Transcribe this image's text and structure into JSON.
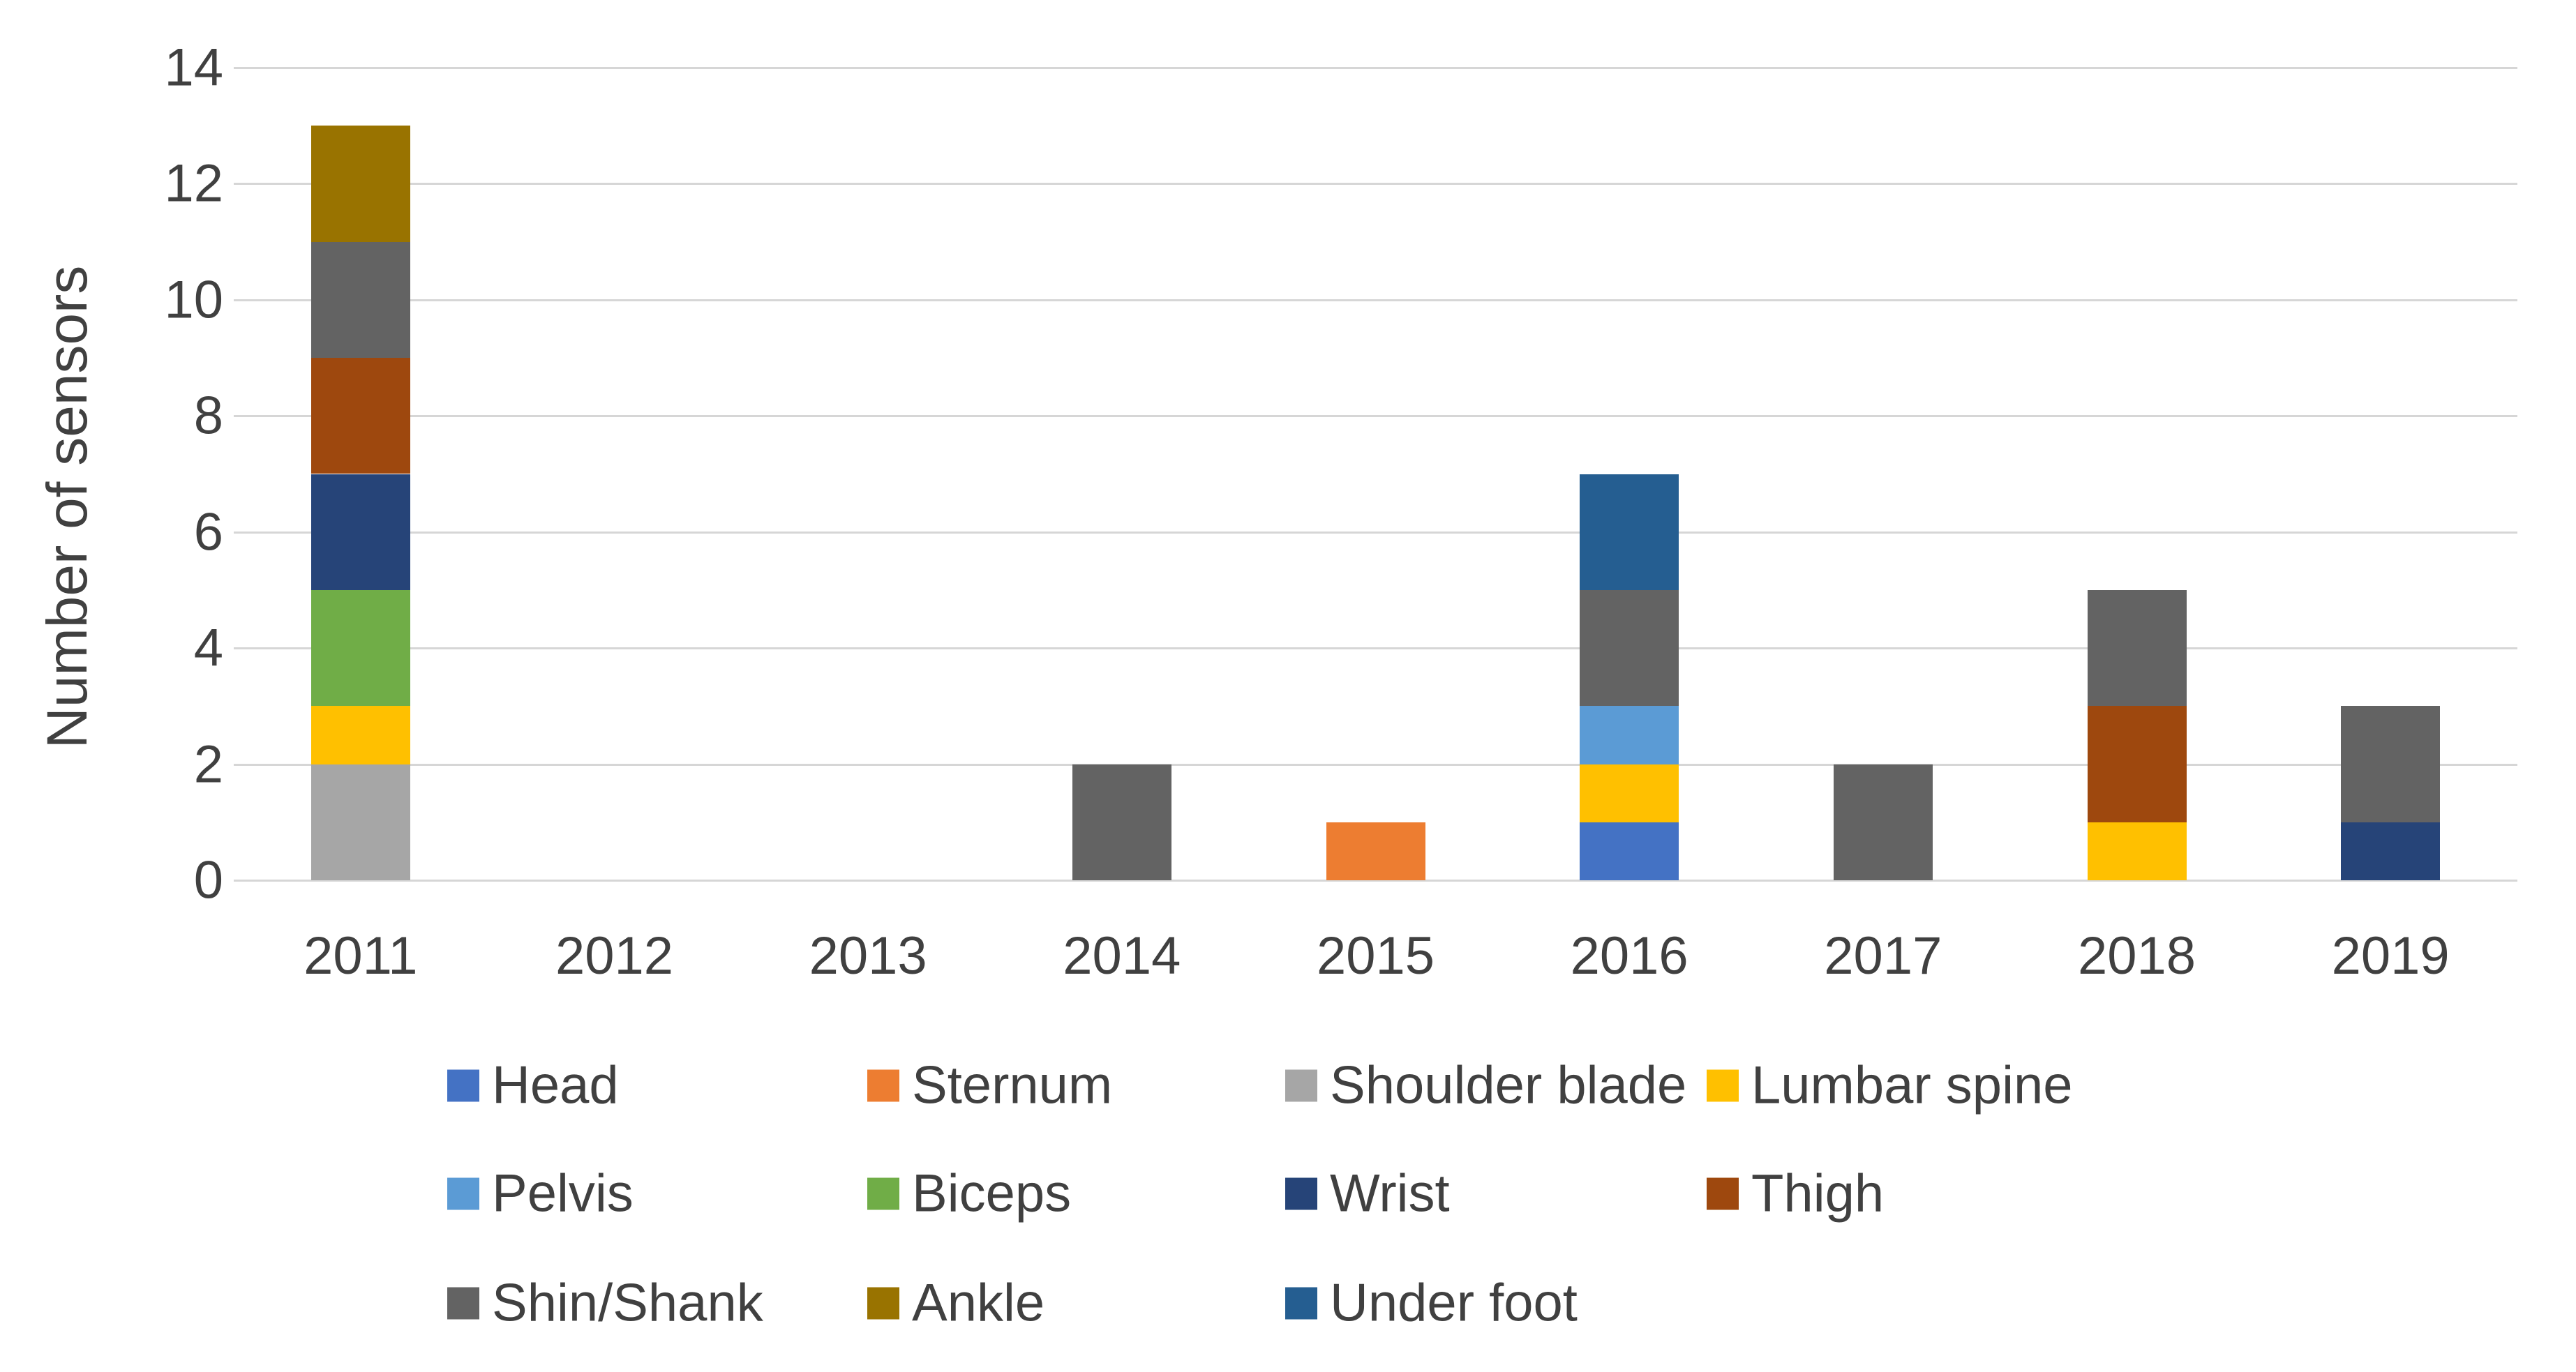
{
  "chart_data": {
    "type": "bar",
    "stacked": true,
    "title": "",
    "xlabel": "",
    "ylabel": "Number of sensors",
    "categories": [
      "2011",
      "2012",
      "2013",
      "2014",
      "2015",
      "2016",
      "2017",
      "2018",
      "2019"
    ],
    "series": [
      {
        "name": "Head",
        "color": "#4472C4",
        "values": [
          0,
          0,
          0,
          0,
          0,
          1,
          0,
          0,
          0
        ]
      },
      {
        "name": "Sternum",
        "color": "#ED7D31",
        "values": [
          0,
          0,
          0,
          0,
          1,
          0,
          0,
          0,
          0
        ]
      },
      {
        "name": "Shoulder blade",
        "color": "#A6A6A6",
        "values": [
          2,
          0,
          0,
          0,
          0,
          0,
          0,
          0,
          0
        ]
      },
      {
        "name": "Lumbar spine",
        "color": "#FFC000",
        "values": [
          1,
          0,
          0,
          0,
          0,
          1,
          0,
          1,
          0
        ]
      },
      {
        "name": "Pelvis",
        "color": "#5B9BD5",
        "values": [
          0,
          0,
          0,
          0,
          0,
          1,
          0,
          0,
          0
        ]
      },
      {
        "name": "Biceps",
        "color": "#70AD47",
        "values": [
          2,
          0,
          0,
          0,
          0,
          0,
          0,
          0,
          0
        ]
      },
      {
        "name": "Wrist",
        "color": "#264478",
        "values": [
          2,
          0,
          0,
          0,
          0,
          0,
          0,
          0,
          1
        ]
      },
      {
        "name": "Thigh",
        "color": "#9E480E",
        "values": [
          2,
          0,
          0,
          0,
          0,
          0,
          0,
          2,
          0
        ]
      },
      {
        "name": "Shin/Shank",
        "color": "#636363",
        "values": [
          2,
          0,
          0,
          2,
          0,
          2,
          2,
          2,
          2
        ]
      },
      {
        "name": "Ankle",
        "color": "#997300",
        "values": [
          2,
          0,
          0,
          0,
          0,
          0,
          0,
          0,
          0
        ]
      },
      {
        "name": "Under foot",
        "color": "#255E91",
        "values": [
          0,
          0,
          0,
          0,
          0,
          2,
          0,
          0,
          0
        ]
      }
    ],
    "bar_totals": [
      13,
      0,
      0,
      2,
      1,
      7,
      2,
      5,
      3
    ],
    "y_ticks": [
      0,
      2,
      4,
      6,
      8,
      10,
      12,
      14
    ],
    "ylim": [
      0,
      14
    ],
    "grid": true,
    "grid_color": "#d6d6d6",
    "text_color": "#404040",
    "legend_position": "bottom",
    "legend_rows": [
      [
        "Head",
        "Sternum",
        "Shoulder blade",
        "Lumbar spine"
      ],
      [
        "Pelvis",
        "Biceps",
        "Wrist",
        "Thigh"
      ],
      [
        "Shin/Shank",
        "Ankle",
        "Under foot"
      ]
    ]
  }
}
